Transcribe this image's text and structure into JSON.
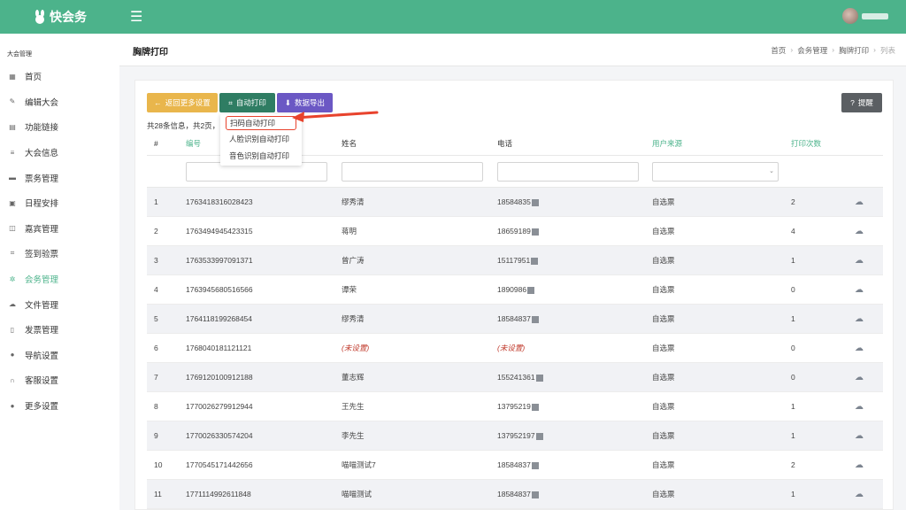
{
  "app": {
    "name": "快会务"
  },
  "sidebar": {
    "title": "大会管理",
    "items": [
      {
        "label": "首页",
        "icon": "grid-icon"
      },
      {
        "label": "编辑大会",
        "icon": "edit-icon"
      },
      {
        "label": "功能链接",
        "icon": "table-icon"
      },
      {
        "label": "大会信息",
        "icon": "list-icon"
      },
      {
        "label": "票务管理",
        "icon": "ticket-icon"
      },
      {
        "label": "日程安排",
        "icon": "calendar-icon"
      },
      {
        "label": "嘉宾管理",
        "icon": "id-card-icon"
      },
      {
        "label": "签到验票",
        "icon": "scan-icon"
      },
      {
        "label": "会务管理",
        "icon": "gear-icon",
        "active": true
      },
      {
        "label": "文件管理",
        "icon": "cloud-icon"
      },
      {
        "label": "发票管理",
        "icon": "invoice-icon"
      },
      {
        "label": "导航设置",
        "icon": "location-icon"
      },
      {
        "label": "客服设置",
        "icon": "headset-icon"
      },
      {
        "label": "更多设置",
        "icon": "dots-icon"
      }
    ]
  },
  "header": {
    "title": "胸牌打印",
    "breadcrumb": [
      "首页",
      "会务管理",
      "胸牌打印",
      "列表"
    ]
  },
  "toolbar": {
    "back_label": "返回更多设置",
    "auto_print_label": "自动打印",
    "export_label": "数据导出",
    "help_label": "提醒"
  },
  "info_text": "共28条信息，共2页，",
  "dropdown": {
    "items": [
      "扫码自动打印",
      "人脸识别自动打印",
      "音色识别自动打印"
    ]
  },
  "table": {
    "columns": [
      "#",
      "编号",
      "姓名",
      "电话",
      "用户来源",
      "打印次数"
    ],
    "rows": [
      {
        "idx": "1",
        "code": "1763418316028423",
        "name": "缪秀清",
        "phone": "18584835",
        "source": "自选票",
        "count": "2"
      },
      {
        "idx": "2",
        "code": "1763494945423315",
        "name": "蒋明",
        "phone": "18659189",
        "source": "自选票",
        "count": "4"
      },
      {
        "idx": "3",
        "code": "1763533997091371",
        "name": "曾广涛",
        "phone": "15117951",
        "source": "自选票",
        "count": "1"
      },
      {
        "idx": "4",
        "code": "1763945680516566",
        "name": "谭荣",
        "phone": "1890986",
        "source": "自选票",
        "count": "0"
      },
      {
        "idx": "5",
        "code": "1764118199268454",
        "name": "缪秀清",
        "phone": "18584837",
        "source": "自选票",
        "count": "1"
      },
      {
        "idx": "6",
        "code": "1768040181121121",
        "name": "(未设置)",
        "phone": "(未设置)",
        "source": "自选票",
        "count": "0",
        "unset": true
      },
      {
        "idx": "7",
        "code": "1769120100912188",
        "name": "董志辉",
        "phone": "155241361",
        "source": "自选票",
        "count": "0"
      },
      {
        "idx": "8",
        "code": "1770026279912944",
        "name": "王先生",
        "phone": "13795219",
        "source": "自选票",
        "count": "1"
      },
      {
        "idx": "9",
        "code": "1770026330574204",
        "name": "李先生",
        "phone": "137952197",
        "source": "自选票",
        "count": "1"
      },
      {
        "idx": "10",
        "code": "1770545171442656",
        "name": "喵喵测试7",
        "phone": "18584837",
        "source": "自选票",
        "count": "2"
      },
      {
        "idx": "11",
        "code": "1771114992611848",
        "name": "喵喵测试",
        "phone": "18584837",
        "source": "自选票",
        "count": "1"
      }
    ]
  },
  "colors": {
    "brand": "#4cb38b",
    "highlight": "#e8432d"
  }
}
